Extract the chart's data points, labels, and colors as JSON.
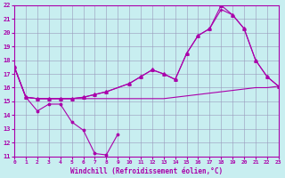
{
  "xlabel": "Windchill (Refroidissement éolien,°C)",
  "xlim": [
    0,
    23
  ],
  "ylim": [
    11,
    22
  ],
  "yticks": [
    11,
    12,
    13,
    14,
    15,
    16,
    17,
    18,
    19,
    20,
    21,
    22
  ],
  "xticks": [
    0,
    1,
    2,
    3,
    4,
    5,
    6,
    7,
    8,
    9,
    10,
    11,
    12,
    13,
    14,
    15,
    16,
    17,
    18,
    19,
    20,
    21,
    22,
    23
  ],
  "bg_color": "#c8eef0",
  "grid_color": "#aaaacc",
  "line_color": "#aa00aa",
  "line_dip_x": [
    0,
    1,
    2,
    3,
    4,
    5,
    6,
    7,
    8,
    9
  ],
  "line_dip_y": [
    17.5,
    15.3,
    14.3,
    14.8,
    14.8,
    13.5,
    12.9,
    11.2,
    11.1,
    12.6
  ],
  "line_flat_x": [
    0,
    1,
    2,
    3,
    4,
    5,
    6,
    7,
    8,
    9,
    10,
    11,
    12,
    13,
    14,
    15,
    16,
    17,
    18,
    19,
    20,
    21,
    22,
    23
  ],
  "line_flat_y": [
    17.5,
    15.3,
    15.2,
    15.2,
    15.2,
    15.2,
    15.2,
    15.2,
    15.2,
    15.2,
    15.2,
    15.2,
    15.2,
    15.2,
    15.3,
    15.4,
    15.5,
    15.6,
    15.7,
    15.8,
    15.9,
    16.0,
    16.0,
    16.1
  ],
  "line_rise1_x": [
    0,
    1,
    2,
    3,
    4,
    5,
    6,
    7,
    8,
    10,
    11,
    12,
    13,
    14,
    15,
    16,
    17,
    18,
    19,
    20,
    21,
    22,
    23
  ],
  "line_rise1_y": [
    17.5,
    15.3,
    15.2,
    15.2,
    15.2,
    15.2,
    15.3,
    15.5,
    15.7,
    16.3,
    16.8,
    17.3,
    17.0,
    16.6,
    18.5,
    19.8,
    20.3,
    21.7,
    21.3,
    20.3,
    18.0,
    16.8,
    16.1
  ],
  "line_rise2_x": [
    0,
    1,
    2,
    3,
    4,
    5,
    6,
    7,
    8,
    10,
    11,
    12,
    13,
    14,
    15,
    16,
    17,
    18,
    19,
    20,
    21,
    22,
    23
  ],
  "line_rise2_y": [
    17.5,
    15.3,
    15.2,
    15.2,
    15.2,
    15.2,
    15.3,
    15.5,
    15.7,
    16.3,
    16.8,
    17.3,
    17.0,
    16.6,
    18.5,
    19.8,
    20.3,
    22.0,
    21.3,
    20.3,
    18.0,
    16.8,
    16.1
  ]
}
